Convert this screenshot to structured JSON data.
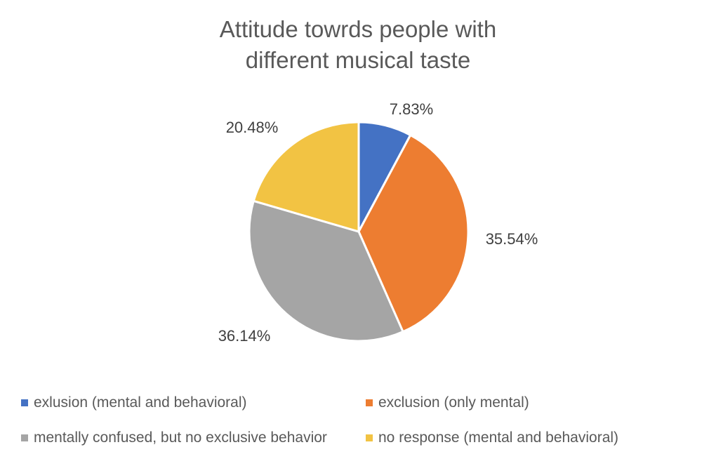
{
  "chart_data": {
    "type": "pie",
    "title_lines": [
      "Attitude towrds people with",
      "different musical taste"
    ],
    "slices": [
      {
        "name": "exlusion (mental and behavioral)",
        "value": 7.83,
        "label": "7.83%",
        "color": "#4472C4"
      },
      {
        "name": "exclusion (only mental)",
        "value": 35.54,
        "label": "35.54%",
        "color": "#ED7D31"
      },
      {
        "name": "mentally confused, but no exclusive behavior",
        "value": 36.14,
        "label": "36.14%",
        "color": "#A5A5A5"
      },
      {
        "name": "no response (mental and behavioral)",
        "value": 20.48,
        "label": "20.48%",
        "color": "#F2C343"
      }
    ],
    "legend_position": "bottom"
  }
}
